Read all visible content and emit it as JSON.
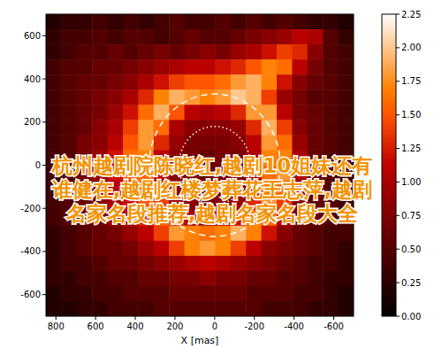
{
  "chart_data": {
    "type": "heatmap",
    "x_label": "X [mas]",
    "xlim": [
      850,
      -700
    ],
    "ylim": [
      -700,
      700
    ],
    "xticks": [
      800,
      600,
      400,
      200,
      0,
      -200,
      -400,
      -600
    ],
    "yticks": [
      -600,
      -400,
      -200,
      0,
      200,
      400,
      600
    ],
    "cells": [
      [
        0.2,
        0.3,
        0.3,
        0.4,
        0.3,
        0.4,
        0.3,
        0.4,
        0.5,
        0.4,
        0.4,
        0.5,
        0.4,
        0.5,
        0.4,
        0.5,
        0.4,
        0.3,
        0.3,
        0.2
      ],
      [
        0.3,
        0.4,
        0.4,
        0.5,
        0.4,
        0.5,
        0.5,
        0.4,
        0.5,
        0.6,
        0.5,
        0.5,
        0.6,
        0.7,
        0.8,
        0.9,
        1.1,
        1.0,
        0.5,
        0.3
      ],
      [
        0.3,
        0.4,
        0.5,
        0.5,
        0.6,
        0.5,
        0.6,
        0.7,
        0.6,
        0.7,
        0.8,
        0.7,
        0.9,
        1.0,
        1.2,
        1.4,
        1.3,
        0.8,
        0.5,
        0.4
      ],
      [
        0.4,
        0.5,
        0.5,
        0.6,
        0.6,
        0.7,
        0.8,
        0.9,
        1.0,
        1.1,
        1.1,
        1.2,
        1.3,
        1.5,
        1.7,
        1.6,
        1.1,
        0.7,
        0.5,
        0.4
      ],
      [
        0.4,
        0.5,
        0.6,
        0.6,
        0.7,
        0.8,
        1.0,
        1.2,
        1.4,
        1.5,
        1.5,
        1.6,
        1.8,
        1.9,
        1.7,
        1.2,
        0.8,
        0.6,
        0.5,
        0.4
      ],
      [
        0.4,
        0.5,
        0.6,
        0.7,
        0.8,
        1.0,
        1.3,
        1.7,
        1.9,
        1.8,
        1.7,
        1.8,
        2.0,
        1.9,
        1.4,
        0.9,
        0.7,
        0.5,
        0.5,
        0.4
      ],
      [
        0.4,
        0.5,
        0.6,
        0.7,
        0.9,
        1.2,
        1.6,
        1.9,
        1.5,
        1.1,
        1.0,
        1.1,
        1.3,
        1.8,
        1.8,
        1.1,
        0.7,
        0.6,
        0.5,
        0.4
      ],
      [
        0.4,
        0.5,
        0.6,
        0.8,
        1.0,
        1.4,
        1.8,
        1.6,
        1.0,
        0.8,
        0.8,
        0.8,
        0.9,
        1.3,
        1.9,
        1.4,
        0.8,
        0.6,
        0.5,
        0.4
      ],
      [
        0.4,
        0.5,
        0.7,
        0.8,
        1.1,
        1.5,
        1.8,
        1.3,
        0.9,
        0.7,
        0.7,
        0.7,
        0.8,
        1.1,
        1.8,
        1.6,
        0.9,
        0.6,
        0.5,
        0.4
      ],
      [
        0.4,
        0.5,
        0.7,
        0.9,
        1.2,
        1.6,
        1.7,
        1.1,
        0.8,
        0.7,
        0.6,
        0.7,
        0.7,
        1.0,
        1.7,
        1.7,
        1.0,
        0.6,
        0.5,
        0.4
      ],
      [
        0.4,
        0.5,
        0.7,
        0.9,
        1.2,
        1.5,
        1.6,
        1.1,
        0.8,
        0.7,
        0.6,
        0.7,
        0.7,
        1.0,
        1.6,
        1.8,
        1.0,
        0.6,
        0.5,
        0.4
      ],
      [
        0.4,
        0.5,
        0.6,
        0.8,
        1.1,
        1.4,
        1.6,
        1.2,
        0.8,
        0.7,
        0.7,
        0.7,
        0.8,
        1.1,
        1.7,
        1.6,
        0.9,
        0.6,
        0.5,
        0.4
      ],
      [
        0.4,
        0.5,
        0.6,
        0.8,
        1.0,
        1.2,
        1.5,
        1.4,
        0.9,
        0.8,
        0.7,
        0.8,
        0.9,
        1.3,
        1.8,
        1.4,
        0.8,
        0.6,
        0.5,
        0.4
      ],
      [
        0.4,
        0.5,
        0.6,
        0.7,
        0.9,
        1.0,
        1.3,
        1.6,
        1.3,
        1.0,
        0.9,
        1.0,
        1.2,
        1.7,
        1.6,
        1.1,
        0.7,
        0.6,
        0.5,
        0.4
      ],
      [
        0.3,
        0.4,
        0.5,
        0.6,
        0.7,
        0.9,
        1.1,
        1.4,
        1.8,
        1.7,
        1.6,
        1.7,
        1.9,
        1.7,
        1.2,
        0.8,
        0.6,
        0.5,
        0.4,
        0.4
      ],
      [
        0.3,
        0.4,
        0.5,
        0.6,
        0.6,
        0.7,
        0.9,
        1.1,
        1.4,
        1.7,
        1.8,
        1.7,
        1.4,
        1.1,
        0.8,
        0.7,
        0.6,
        0.5,
        0.4,
        0.3
      ],
      [
        0.3,
        0.4,
        0.4,
        0.5,
        0.6,
        0.6,
        0.7,
        0.8,
        0.9,
        1.0,
        1.1,
        1.0,
        0.9,
        0.8,
        0.7,
        0.6,
        0.5,
        0.4,
        0.4,
        0.3
      ],
      [
        0.3,
        0.3,
        0.4,
        0.4,
        0.5,
        0.5,
        0.6,
        0.6,
        0.7,
        0.7,
        0.8,
        0.7,
        0.7,
        0.6,
        0.6,
        0.5,
        0.5,
        0.4,
        0.3,
        0.3
      ],
      [
        0.2,
        0.3,
        0.3,
        0.4,
        0.4,
        0.5,
        0.5,
        0.5,
        0.6,
        0.6,
        0.6,
        0.6,
        0.6,
        0.5,
        0.5,
        0.5,
        0.4,
        0.4,
        0.3,
        0.2
      ],
      [
        0.2,
        0.2,
        0.3,
        0.3,
        0.4,
        0.4,
        0.4,
        0.5,
        0.5,
        0.5,
        0.5,
        0.5,
        0.5,
        0.5,
        0.4,
        0.4,
        0.4,
        0.3,
        0.3,
        0.2
      ]
    ],
    "colorbar": {
      "range": [
        0,
        2.25
      ],
      "ticks": [
        {
          "value": 0,
          "label": "0.00"
        },
        {
          "value": 0.25,
          "label": "0.25"
        },
        {
          "value": 0.5,
          "label": "0.50"
        },
        {
          "value": 0.75,
          "label": "0.75"
        },
        {
          "value": 1,
          "label": "1.00"
        },
        {
          "value": 1.25,
          "label": "1.25"
        },
        {
          "value": 1.5,
          "label": "1.50"
        },
        {
          "value": 1.75,
          "label": "1.75"
        },
        {
          "value": 2,
          "label": "2.00"
        },
        {
          "value": 2.25,
          "label": "2.25"
        }
      ]
    },
    "circles": [
      {
        "x": 0,
        "y": 0,
        "r": 180,
        "line_style": "dotted"
      },
      {
        "x": 0,
        "y": 0,
        "r": 330,
        "line_style": "dashed"
      }
    ],
    "annotations": [
      "杭州越剧院陈晓红,越剧10姐妹还有",
      "谁健在,越剧红楼梦葬花王志萍,越剧",
      "名家名段推荐,越剧名家名段大全"
    ]
  }
}
